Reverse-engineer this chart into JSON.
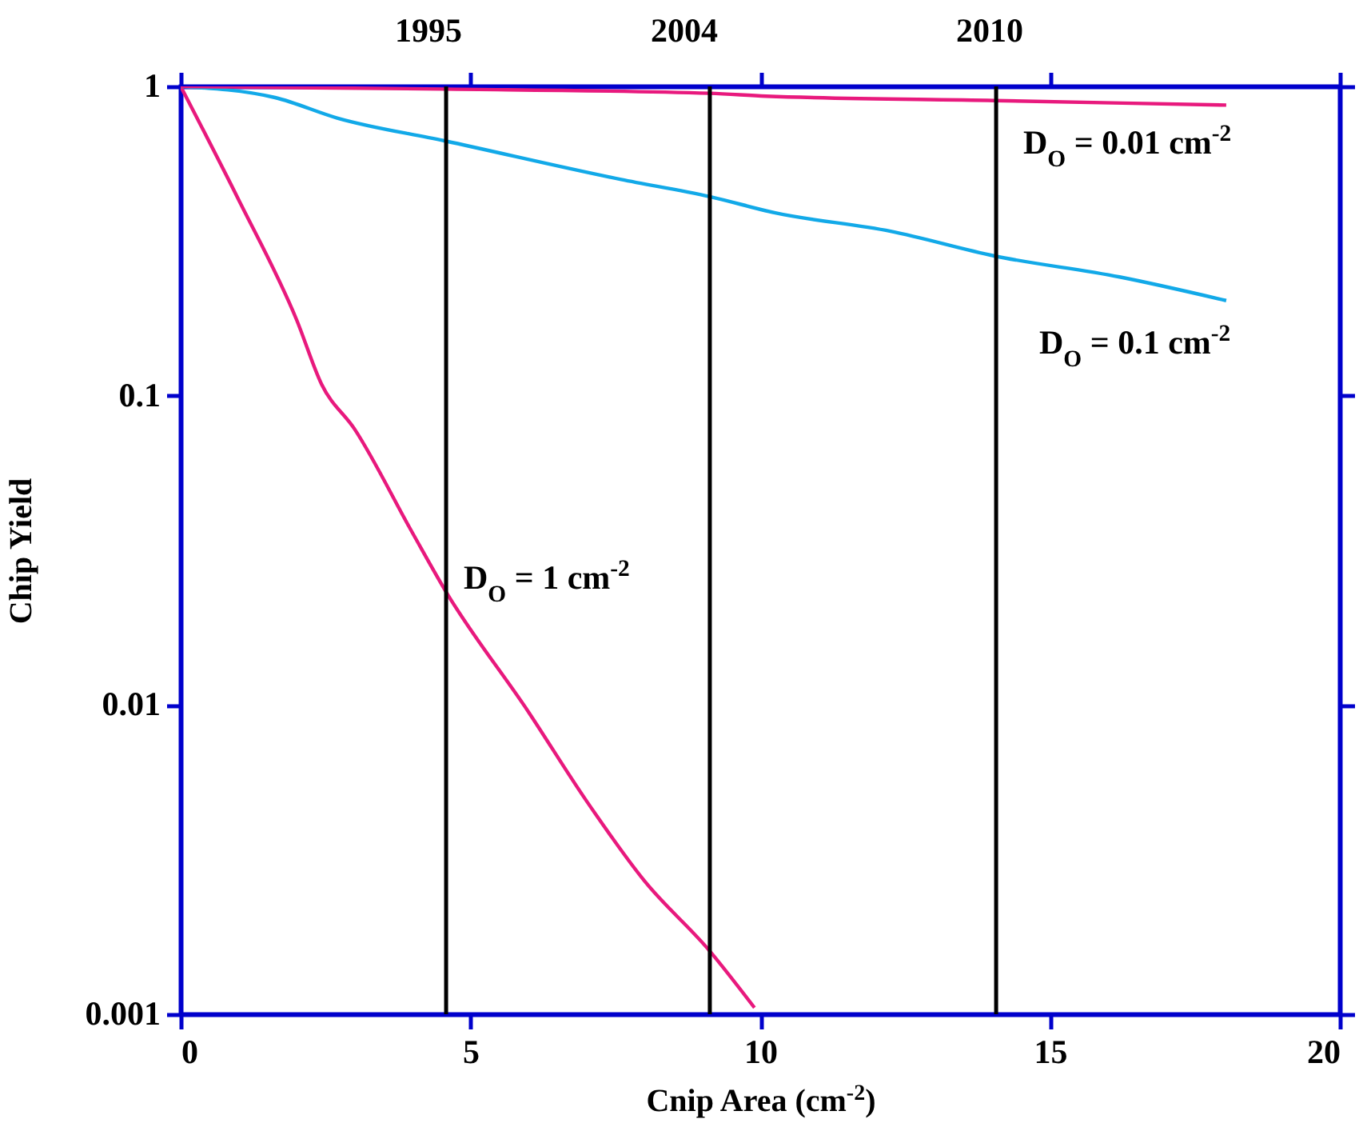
{
  "chart_data": {
    "type": "line",
    "xlabel": "Cnip Area (cm$^{-2}$)",
    "ylabel": "Chip  Yield",
    "log": true,
    "xlim": [
      0,
      20
    ],
    "xticks": [
      0,
      5,
      10,
      15,
      20
    ],
    "ylim": [
      0.001,
      1
    ],
    "yticks": [
      0.001,
      0.01,
      0.1,
      1
    ],
    "series": [
      {
        "color": "#e8197d",
        "x": [
          0,
          1,
          2,
          2.43,
          3,
          4,
          4.58,
          6,
          7,
          8,
          9.13,
          9.9
        ],
        "values": [
          1,
          0.43,
          0.176,
          0.109,
          0.078,
          0.036,
          0.0232,
          0.0095,
          0.0049,
          0.0027,
          0.0016,
          0.00105
        ]
      },
      {
        "color": "#12a9e8",
        "x": [
          0,
          1.63,
          2.7,
          4.55,
          7.6,
          9.13,
          10.26,
          12.25,
          14.04,
          16.2,
          18.04
        ],
        "values": [
          1,
          0.92,
          0.79,
          0.667,
          0.5,
          0.44,
          0.39,
          0.34,
          0.283,
          0.242,
          0.203
        ]
      },
      {
        "color": "#e8197d",
        "x": [
          0,
          2.3,
          4.55,
          9.13,
          10.1,
          14.04,
          18.04
        ],
        "values": [
          1,
          0.99,
          0.98,
          0.95,
          0.93,
          0.9,
          0.87
        ]
      }
    ],
    "ref_lines": [
      {
        "axis": "x",
        "value": 4.58,
        "color": "#000000"
      },
      {
        "axis": "x",
        "value": 9.13,
        "color": "#000000"
      },
      {
        "axis": "x",
        "value": 14.07,
        "color": "#000000"
      }
    ],
    "annotations": [
      "1995",
      "2004",
      "2010",
      "D$_{O}$ = 0.01 cm$^{-2}$",
      "D$_{O}$ = 0.1 cm$^{-2}$",
      "D$_{O}$ = 1 cm$^{-2}$"
    ]
  }
}
